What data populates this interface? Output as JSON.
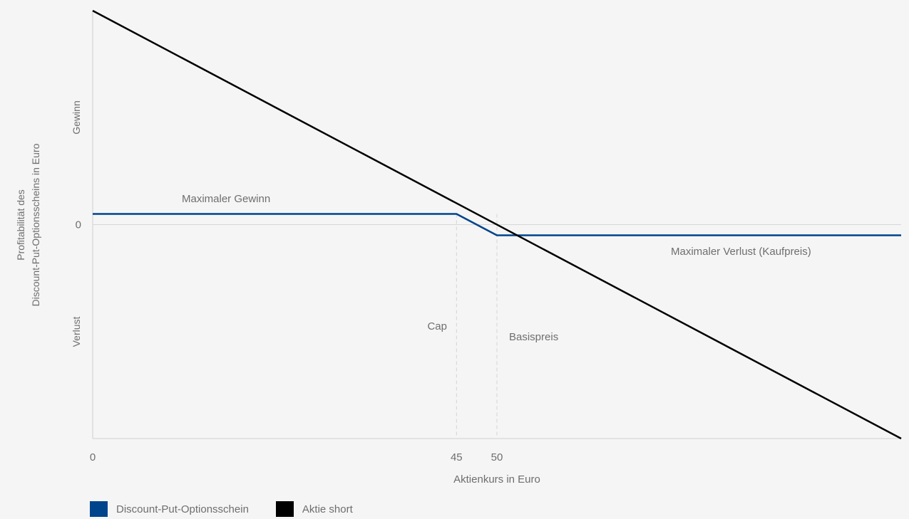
{
  "chart_data": {
    "type": "line",
    "title": "",
    "xlabel": "Aktienkurs in Euro",
    "ylabel_lines": [
      "Profitabilität des",
      "Discount-Put-Optionsscheins in Euro"
    ],
    "xlim": [
      0,
      100
    ],
    "ylim": [
      -10,
      10
    ],
    "x_ticks": [
      0,
      45,
      50
    ],
    "y_ticks": [
      0
    ],
    "y_region_labels": {
      "top": "Gewinn",
      "bottom": "Verlust"
    },
    "grid": false,
    "series": [
      {
        "name": "Discount-Put-Optionsschein",
        "color": "#00448c",
        "x": [
          0,
          45,
          50,
          100
        ],
        "y": [
          0.5,
          0.5,
          -0.5,
          -0.5
        ]
      },
      {
        "name": "Aktie short",
        "color": "#000000",
        "x": [
          0,
          100
        ],
        "y": [
          10,
          -10
        ]
      }
    ],
    "reference_lines": [
      {
        "x": 45,
        "label": "Cap"
      },
      {
        "x": 50,
        "label": "Basispreis"
      }
    ],
    "annotations": [
      {
        "text": "Maximaler Gewinn",
        "x": 11.2,
        "y": 1.2
      },
      {
        "text": "Maximaler Verlust (Kaufpreis)",
        "x": 71.5,
        "y": -1.2
      }
    ],
    "legend_position": "bottom-left"
  }
}
